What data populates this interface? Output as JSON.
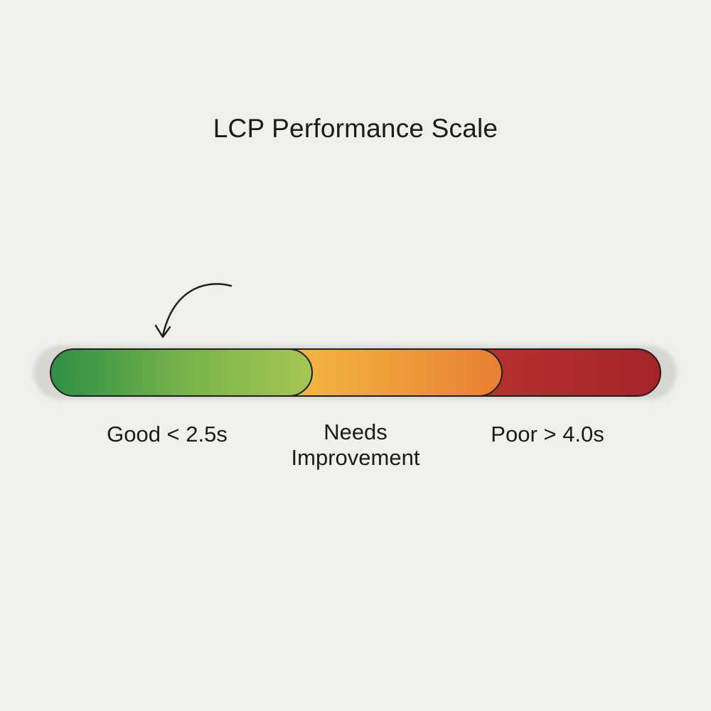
{
  "title": "LCP Performance Scale",
  "scale": {
    "segments": [
      {
        "label": "Good < 2.5s",
        "color_start": "#2e8f46",
        "color_end": "#a5c653"
      },
      {
        "label_line1": "Needs",
        "label_line2": "Improvement",
        "color_start": "#f4c244",
        "color_end": "#e97f33"
      },
      {
        "label": "Poor > 4.0s",
        "color_start": "#e0533e",
        "color_end": "#a4242a"
      }
    ]
  },
  "icons": {
    "pointer": "curved-arrow-icon"
  }
}
